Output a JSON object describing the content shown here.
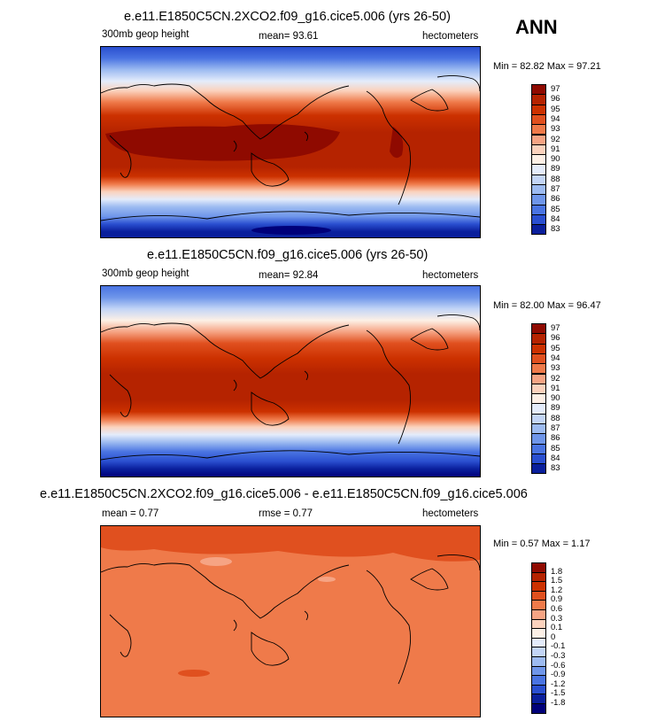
{
  "season": "ANN",
  "panels": [
    {
      "title": "e.e11.E1850C5CN.2XCO2.f09_g16.cice5.006 (yrs 26-50)",
      "left_label": "300mb geop height",
      "center_label": "mean=  93.61",
      "right_label": "hectometers",
      "minmax": "Min = 82.82 Max = 97.21",
      "colorbar": [
        "97",
        "96",
        "95",
        "94",
        "93",
        "92",
        "91",
        "90",
        "89",
        "88",
        "87",
        "86",
        "85",
        "84",
        "83"
      ]
    },
    {
      "title": "e.e11.E1850C5CN.f09_g16.cice5.006 (yrs 26-50)",
      "left_label": "300mb geop height",
      "center_label": "mean=  92.84",
      "right_label": "hectometers",
      "minmax": "Min = 82.00 Max = 96.47",
      "colorbar": [
        "97",
        "96",
        "95",
        "94",
        "93",
        "92",
        "91",
        "90",
        "89",
        "88",
        "87",
        "86",
        "85",
        "84",
        "83"
      ]
    },
    {
      "title": "e.e11.E1850C5CN.2XCO2.f09_g16.cice5.006 - e.e11.E1850C5CN.f09_g16.cice5.006",
      "left_label": "mean =   0.77",
      "center_label": "rmse =   0.77",
      "right_label": "hectometers",
      "minmax": "Min =  0.57 Max =   1.17",
      "colorbar": [
        "1.8",
        "1.5",
        "1.2",
        "0.9",
        "0.6",
        "0.3",
        "0.1",
        "0",
        "-0.1",
        "-0.3",
        "-0.6",
        "-0.9",
        "-1.2",
        "-1.5",
        "-1.8"
      ]
    }
  ],
  "palette": {
    "abs": [
      "#8f0a00",
      "#b52300",
      "#cc3100",
      "#e0501f",
      "#ef7a4a",
      "#f6a484",
      "#fbd2bd",
      "#fdf0e6",
      "#e4ecfb",
      "#c3d5f6",
      "#9dbbf1",
      "#6f96ea",
      "#4a74e2",
      "#2a4fd0",
      "#0a1f9c"
    ],
    "diff": [
      "#8f0a00",
      "#b52300",
      "#cc3100",
      "#e0501f",
      "#ef7a4a",
      "#f6a484",
      "#fbd2bd",
      "#fdf0e6",
      "#e4ecfb",
      "#c3d5f6",
      "#9dbbf1",
      "#6f96ea",
      "#4a74e2",
      "#2a4fd0",
      "#0a1f9c",
      "#00007a"
    ]
  }
}
